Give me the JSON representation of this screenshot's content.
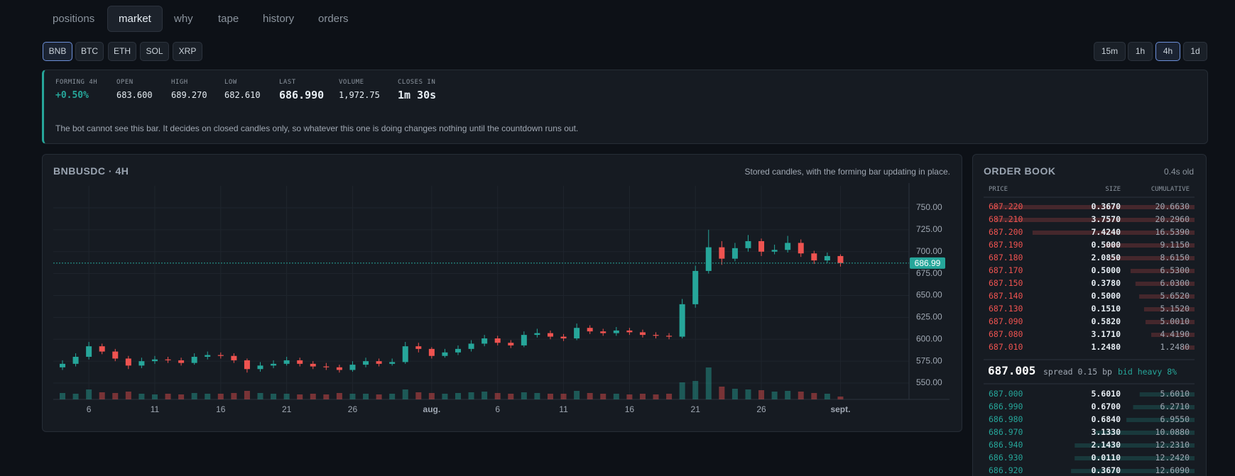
{
  "nav": {
    "tabs": [
      "positions",
      "market",
      "why",
      "tape",
      "history",
      "orders"
    ],
    "active": 1
  },
  "symbols": {
    "items": [
      "BNB",
      "BTC",
      "ETH",
      "SOL",
      "XRP"
    ],
    "active": 0
  },
  "intervals": {
    "items": [
      "15m",
      "1h",
      "4h",
      "1d"
    ],
    "active": 2
  },
  "forming": {
    "fields": [
      {
        "label": "FORMING 4H",
        "value": "+0.50%"
      },
      {
        "label": "OPEN",
        "value": "683.600"
      },
      {
        "label": "HIGH",
        "value": "689.270"
      },
      {
        "label": "LOW",
        "value": "682.610"
      },
      {
        "label": "LAST",
        "value": "686.990"
      },
      {
        "label": "VOLUME",
        "value": "1,972.75"
      },
      {
        "label": "CLOSES IN",
        "value": "1m 30s"
      }
    ],
    "note": "The bot cannot see this bar. It decides on closed candles only, so whatever this one is doing changes nothing until the countdown runs out."
  },
  "chart_data": {
    "type": "candlestick",
    "title": "BNBUSDC · 4H",
    "subtitle": "Stored candles, with the forming bar updating in place.",
    "open": [
      568,
      572,
      580,
      592,
      586,
      578,
      570,
      575,
      577,
      576,
      573,
      580,
      582,
      581,
      576,
      566,
      570,
      572,
      576,
      572,
      569,
      568,
      565,
      571,
      575,
      572,
      574,
      592,
      589,
      581,
      585,
      589,
      595,
      601,
      596,
      593,
      605,
      607,
      603,
      601,
      613,
      609,
      607,
      610,
      608,
      605,
      604,
      603,
      640,
      678,
      705,
      692,
      704,
      712,
      700,
      702,
      710,
      698,
      690,
      695
    ],
    "high": [
      576,
      584,
      597,
      595,
      589,
      581,
      579,
      581,
      580,
      579,
      584,
      586,
      585,
      584,
      578,
      574,
      576,
      580,
      579,
      575,
      573,
      571,
      575,
      579,
      578,
      578,
      597,
      596,
      591,
      589,
      593,
      599,
      605,
      604,
      599,
      609,
      612,
      610,
      606,
      618,
      616,
      612,
      614,
      613,
      611,
      608,
      607,
      646,
      684,
      725,
      712,
      710,
      719,
      715,
      708,
      718,
      714,
      701,
      699,
      697
    ],
    "low": [
      565,
      569,
      577,
      583,
      575,
      566,
      567,
      572,
      573,
      570,
      571,
      577,
      578,
      573,
      562,
      563,
      567,
      570,
      569,
      566,
      565,
      562,
      563,
      568,
      569,
      570,
      572,
      585,
      578,
      579,
      582,
      586,
      592,
      593,
      590,
      591,
      602,
      600,
      598,
      599,
      606,
      604,
      604,
      605,
      602,
      601,
      600,
      601,
      636,
      675,
      685,
      689,
      700,
      695,
      697,
      699,
      694,
      686,
      687,
      683
    ],
    "close": [
      572,
      580,
      592,
      586,
      578,
      570,
      575,
      577,
      576,
      573,
      580,
      582,
      581,
      576,
      566,
      570,
      572,
      576,
      572,
      569,
      568,
      565,
      571,
      575,
      572,
      574,
      592,
      589,
      581,
      585,
      589,
      595,
      601,
      596,
      593,
      605,
      607,
      603,
      601,
      613,
      609,
      607,
      610,
      608,
      605,
      604,
      603,
      640,
      678,
      705,
      692,
      704,
      712,
      700,
      702,
      710,
      698,
      690,
      695,
      687
    ],
    "volume": [
      9,
      8,
      14,
      10,
      9,
      11,
      8,
      7,
      8,
      7,
      9,
      8,
      8,
      9,
      12,
      9,
      8,
      8,
      7,
      8,
      7,
      9,
      8,
      8,
      7,
      8,
      14,
      10,
      9,
      8,
      9,
      10,
      11,
      9,
      8,
      10,
      9,
      8,
      8,
      12,
      9,
      8,
      8,
      7,
      8,
      7,
      8,
      24,
      26,
      45,
      18,
      15,
      14,
      13,
      11,
      12,
      11,
      9,
      8,
      4
    ],
    "xlim": [
      -0.7,
      64.2
    ],
    "xticks": [
      {
        "value": 2,
        "label": "6"
      },
      {
        "value": 7,
        "label": "11"
      },
      {
        "value": 12,
        "label": "16"
      },
      {
        "value": 17,
        "label": "21"
      },
      {
        "value": 22,
        "label": "26"
      },
      {
        "value": 28,
        "label": "aug."
      },
      {
        "value": 33,
        "label": "6"
      },
      {
        "value": 38,
        "label": "11"
      },
      {
        "value": 43,
        "label": "16"
      },
      {
        "value": 48,
        "label": "21"
      },
      {
        "value": 53,
        "label": "26"
      },
      {
        "value": 59,
        "label": "sept."
      }
    ],
    "ylim": [
      531.4,
      775.1
    ],
    "yticks": [
      {
        "value": 550,
        "label": "550.00"
      },
      {
        "value": 575,
        "label": "575.00"
      },
      {
        "value": 600,
        "label": "600.00"
      },
      {
        "value": 625,
        "label": "625.00"
      },
      {
        "value": 650,
        "label": "650.00"
      },
      {
        "value": 675,
        "label": "675.00"
      },
      {
        "value": 700,
        "label": "700.00"
      },
      {
        "value": 725,
        "label": "725.00"
      },
      {
        "value": 750,
        "label": "750.00"
      }
    ],
    "last_price": 686.99,
    "up_color": "#26a69a",
    "down_color": "#ef5350",
    "grid": true
  },
  "order_book": {
    "title": "ORDER BOOK",
    "age": "0.4s old",
    "headers": [
      "PRICE",
      "SIZE",
      "CUMULATIVE"
    ],
    "asks": [
      [
        "687.220",
        "0.3670",
        "20.6630"
      ],
      [
        "687.210",
        "3.7570",
        "20.2960"
      ],
      [
        "687.200",
        "7.4240",
        "16.5390"
      ],
      [
        "687.190",
        "0.5000",
        "9.1150"
      ],
      [
        "687.180",
        "2.0850",
        "8.6150"
      ],
      [
        "687.170",
        "0.5000",
        "6.5300"
      ],
      [
        "687.150",
        "0.3780",
        "6.0300"
      ],
      [
        "687.140",
        "0.5000",
        "5.6520"
      ],
      [
        "687.130",
        "0.1510",
        "5.1520"
      ],
      [
        "687.090",
        "0.5820",
        "5.0010"
      ],
      [
        "687.080",
        "3.1710",
        "4.4190"
      ],
      [
        "687.010",
        "1.2480",
        "1.2480"
      ]
    ],
    "mid": "687.005",
    "spread": "spread 0.15 bp",
    "imbalance": "bid heavy 8%",
    "bids": [
      [
        "687.000",
        "5.6010",
        "5.6010"
      ],
      [
        "686.990",
        "0.6700",
        "6.2710"
      ],
      [
        "686.980",
        "0.6840",
        "6.9550"
      ],
      [
        "686.970",
        "3.1330",
        "10.0880"
      ],
      [
        "686.940",
        "2.1430",
        "12.2310"
      ],
      [
        "686.930",
        "0.0110",
        "12.2420"
      ],
      [
        "686.920",
        "0.3670",
        "12.6090"
      ]
    ]
  }
}
